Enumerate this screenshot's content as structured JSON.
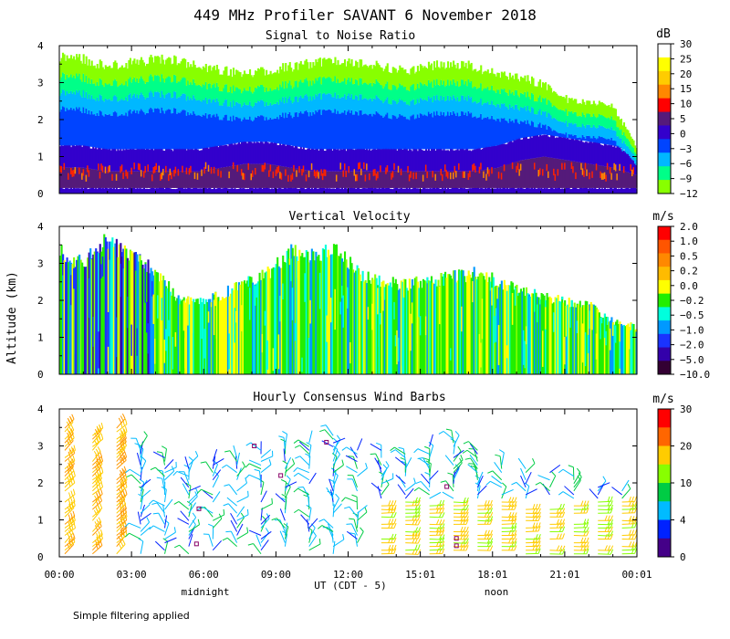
{
  "title": "449 MHz Profiler SAVANT  6 November 2018",
  "y_axis_label": "Altitude (km)",
  "x_axis_label": "UT  (CDT - 5)",
  "x_ticks": [
    "00:00",
    "03:00",
    "06:00",
    "09:00",
    "12:00",
    "15:01",
    "18:01",
    "21:01",
    "00:01"
  ],
  "local_time_labels": [
    "midnight",
    "noon"
  ],
  "footnote": "Simple filtering applied",
  "chart_data": [
    {
      "type": "heatmap",
      "title": "Signal to Noise Ratio",
      "ylim": [
        0,
        4
      ],
      "y_ticks": [
        "0",
        "1",
        "2",
        "3",
        "4"
      ],
      "colorbar_unit": "dB",
      "colorbar_labels": [
        "30",
        "25",
        "20",
        "15",
        "10",
        "5",
        "0",
        "−3",
        "−6",
        "−9",
        "−12"
      ],
      "colorbar_colors": [
        "#ffffff",
        "#ffff00",
        "#ffcc00",
        "#ff8800",
        "#ff0000",
        "#551a7a",
        "#3300cc",
        "#0044ff",
        "#00b8ff",
        "#00ff88",
        "#88ff00"
      ],
      "profile_top_km": [
        3.8,
        3.7,
        3.5,
        3.6,
        3.7,
        3.7,
        3.5,
        3.4,
        3.3,
        3.4,
        3.5,
        3.6,
        3.7,
        3.6,
        3.5,
        3.4,
        3.5,
        3.6,
        3.5,
        3.3,
        3.2,
        3.0,
        2.6,
        2.5,
        2.4,
        1.3
      ],
      "red_layer_km": [
        0.7,
        0.7,
        0.6,
        0.6,
        0.6,
        0.6,
        0.6,
        0.7,
        0.8,
        0.8,
        0.7,
        0.6,
        0.6,
        0.6,
        0.6,
        0.6,
        0.6,
        0.6,
        0.6,
        0.7,
        0.9,
        1.0,
        0.9,
        0.8,
        0.7,
        0.5
      ]
    },
    {
      "type": "heatmap",
      "title": "Vertical Velocity",
      "ylim": [
        0,
        4
      ],
      "y_ticks": [
        "0",
        "1",
        "2",
        "3",
        "4"
      ],
      "colorbar_unit": "m/s",
      "colorbar_labels": [
        "2.0",
        "1.0",
        "0.5",
        "0.2",
        "0.0",
        "−0.2",
        "−0.5",
        "−1.0",
        "−2.0",
        "−5.0",
        "−10.0"
      ],
      "colorbar_colors": [
        "#ff0000",
        "#ff5500",
        "#ff8800",
        "#ffbb00",
        "#ffff00",
        "#22ee00",
        "#00ffdd",
        "#0099ff",
        "#1a33ff",
        "#3300aa",
        "#330033"
      ],
      "profile_top_km": [
        3.4,
        3.1,
        3.7,
        3.3,
        3.0,
        2.2,
        2.0,
        2.2,
        2.6,
        2.8,
        3.4,
        3.3,
        3.5,
        2.8,
        2.6,
        2.5,
        2.6,
        2.7,
        2.8,
        2.6,
        2.3,
        2.2,
        2.0,
        1.9,
        1.5,
        1.3
      ]
    },
    {
      "type": "wind_barbs",
      "title": "Hourly Consensus Wind Barbs",
      "ylim": [
        0,
        4
      ],
      "y_ticks": [
        "0",
        "1",
        "2",
        "3",
        "4"
      ],
      "colorbar_unit": "m/s",
      "colorbar_labels": [
        "30",
        "20",
        "10",
        "4",
        "0"
      ],
      "colorbar_colors": [
        "#ff0000",
        "#ff6600",
        "#ffcc00",
        "#88ff00",
        "#00cc44",
        "#00bbff",
        "#0022ff",
        "#440088"
      ],
      "hours_ut": [
        0,
        1,
        2,
        3,
        4,
        5,
        6,
        7,
        8,
        9,
        10,
        11,
        12,
        13,
        14,
        15,
        16,
        17,
        18,
        19,
        20,
        21,
        22,
        23
      ],
      "profile_top_km": [
        3.5,
        3.3,
        3.5,
        3.0,
        2.7,
        2.5,
        2.6,
        2.7,
        2.9,
        3.0,
        3.1,
        3.3,
        3.0,
        2.9,
        2.8,
        3.0,
        3.2,
        3.0,
        2.6,
        2.4,
        2.3,
        2.2,
        1.9,
        1.8
      ]
    }
  ]
}
